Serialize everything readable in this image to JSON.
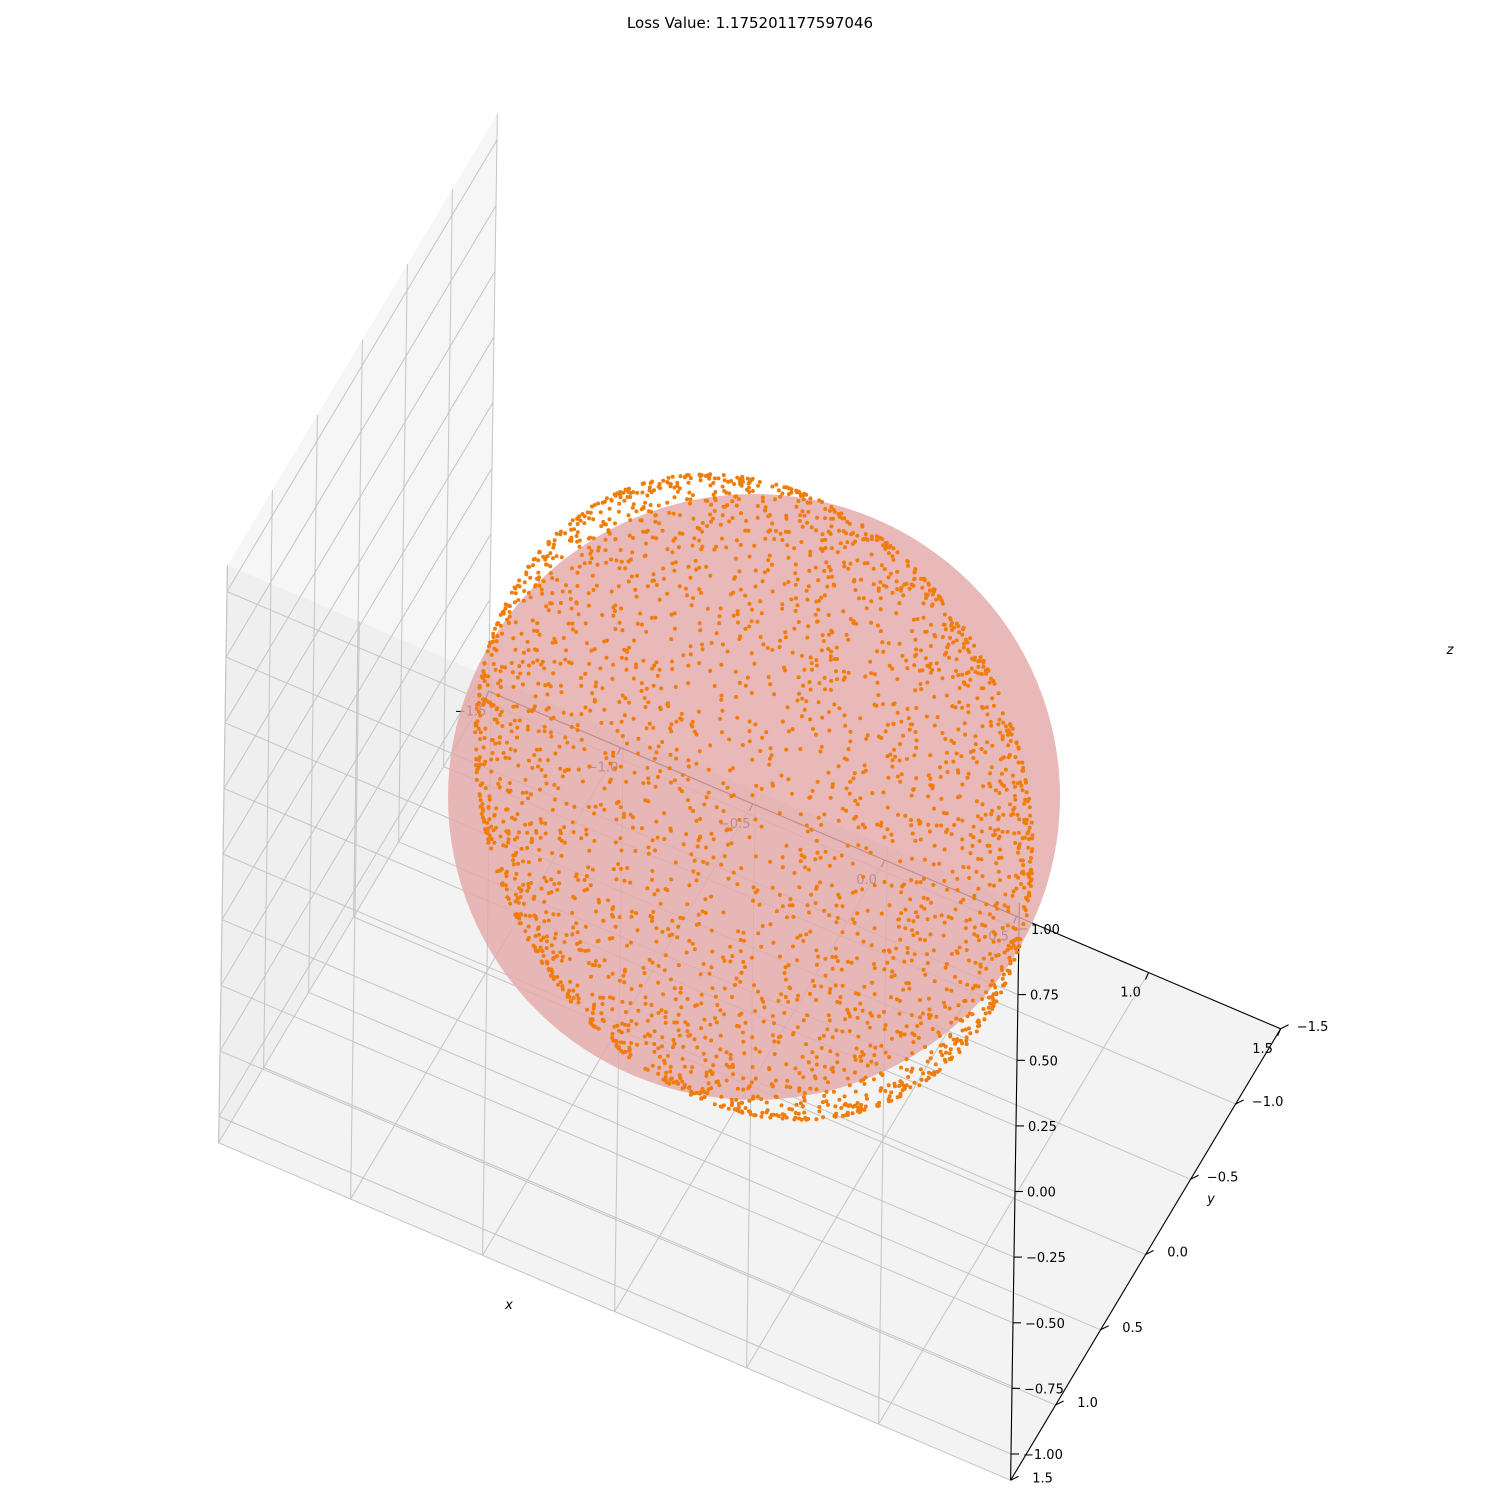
{
  "colors": {
    "sphere_surface": "#e4a8a8",
    "points": "#f07c0a",
    "pane_left": "#f6f6f6",
    "pane_back": "#efefef",
    "pane_floor": "#f3f3f3"
  },
  "chart_data": {
    "type": "scatter",
    "projection": "3d",
    "title": "Loss Value: 1.175201177597046",
    "xlabel": "x",
    "ylabel": "y",
    "zlabel": "z",
    "xlim": [
      -1.5,
      1.5
    ],
    "ylim": [
      -1.5,
      1.5
    ],
    "zlim": [
      -1.0,
      1.0
    ],
    "xticks": [
      "−1.5",
      "−1.0",
      "−0.5",
      "0.0",
      "0.5",
      "1.0",
      "1.5"
    ],
    "yticks": [
      "−1.5",
      "−1.0",
      "−0.5",
      "0.0",
      "0.5",
      "1.0",
      "1.5"
    ],
    "zticks": [
      "−1.00",
      "−0.75",
      "−0.50",
      "−0.25",
      "0.00",
      "0.25",
      "0.50",
      "0.75",
      "1.00"
    ],
    "grid": true,
    "series": [
      {
        "kind": "surface",
        "shape": "unit sphere",
        "center": [
          0,
          0,
          0
        ],
        "radius": 1.0
      },
      {
        "kind": "scatter",
        "distribution": "approximately uniform on unit sphere surface",
        "radius": 1.0,
        "approx_count": 3000
      }
    ]
  }
}
